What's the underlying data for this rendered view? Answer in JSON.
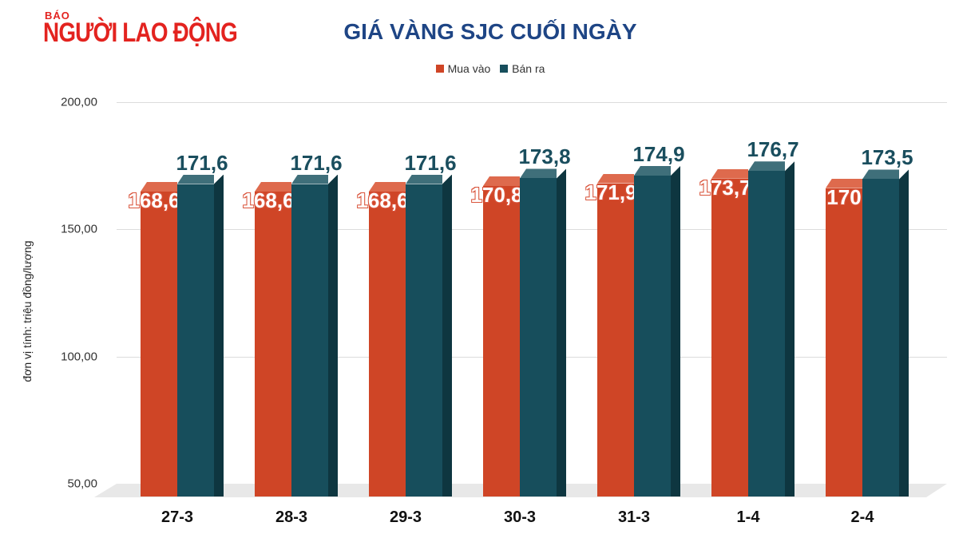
{
  "logo": {
    "small": "BÁO",
    "name": "NGƯỜI LAO ĐỘNG"
  },
  "title": "GIÁ VÀNG SJC CUỐI NGÀY",
  "legend": [
    {
      "label": "Mua vào",
      "color": "#cf4526"
    },
    {
      "label": "Bán ra",
      "color": "#174e5c"
    }
  ],
  "yaxis": {
    "label": "đơn vị tính: triệu đồng/lượng",
    "ticks": [
      "200,00",
      "150,00",
      "100,00",
      "50,00"
    ]
  },
  "colors": {
    "buy_front": "#cf4526",
    "buy_top": "#de6a4d",
    "sell_front": "#174e5c",
    "sell_top": "#3f6f7a",
    "sell_side": "#0e3640"
  },
  "chart_data": {
    "type": "bar",
    "title": "GIÁ VÀNG SJC CUỐI NGÀY",
    "xlabel": "",
    "ylabel": "đơn vị tính: triệu đồng/lượng",
    "ylim": [
      50,
      200
    ],
    "yticks": [
      50,
      100,
      150,
      200
    ],
    "grid": true,
    "legend_position": "top",
    "categories": [
      "27-3",
      "28-3",
      "29-3",
      "30-3",
      "31-3",
      "1-4",
      "2-4"
    ],
    "series": [
      {
        "name": "Mua vào",
        "values": [
          168.6,
          168.6,
          168.6,
          170.8,
          171.9,
          173.7,
          170
        ]
      },
      {
        "name": "Bán ra",
        "values": [
          171.6,
          171.6,
          171.6,
          173.8,
          174.9,
          176.7,
          173.5
        ]
      }
    ],
    "data_labels": {
      "Mua vào": [
        "168,6",
        "168,6",
        "168,6",
        "170,8",
        "171,9",
        "173,7",
        "170"
      ],
      "Bán ra": [
        "171,6",
        "171,6",
        "171,6",
        "173,8",
        "174,9",
        "176,7",
        "173,5"
      ]
    }
  }
}
